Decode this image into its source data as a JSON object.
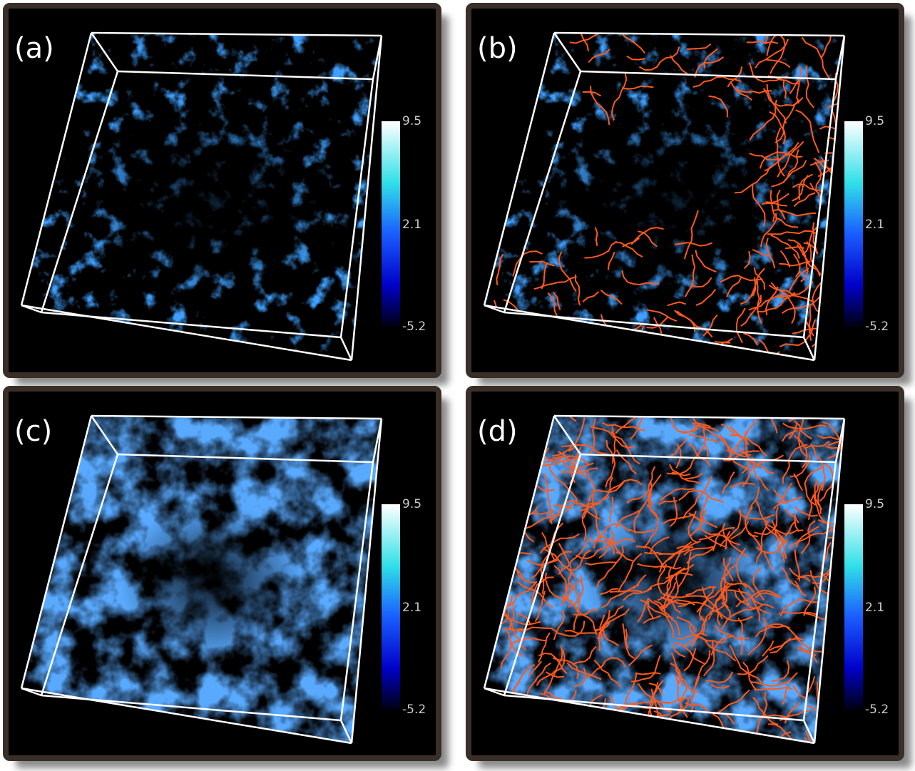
{
  "panels": [
    {
      "label": "(a)",
      "colorbar": {
        "lim": [
          -5.2,
          9.5
        ],
        "ticks": [
          9.5,
          2.1,
          -5.2
        ]
      }
    },
    {
      "label": "(b)",
      "colorbar": {
        "lim": [
          -5.2,
          9.5
        ],
        "ticks": [
          9.5,
          2.1,
          -5.2
        ]
      }
    },
    {
      "label": "(c)",
      "colorbar": {
        "lim": [
          -5.2,
          9.5
        ],
        "ticks": [
          9.5,
          2.1,
          -5.2
        ]
      }
    },
    {
      "label": "(d)",
      "colorbar": {
        "lim": [
          -5.2,
          9.5
        ],
        "ticks": [
          9.5,
          2.1,
          -5.2
        ]
      }
    }
  ]
}
